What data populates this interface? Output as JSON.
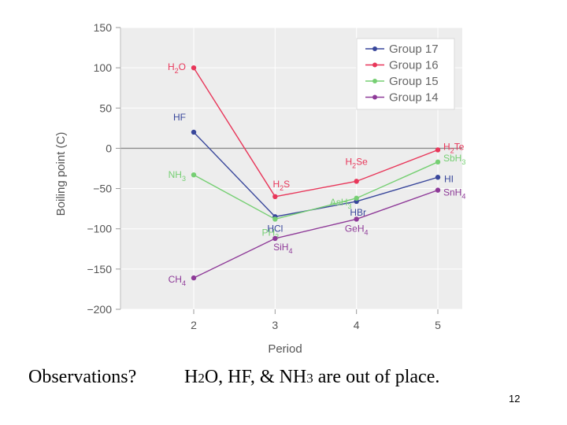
{
  "chart_data": {
    "type": "line",
    "xlabel": "Period",
    "ylabel": "Boiling point (C)",
    "x": [
      2,
      3,
      4,
      5
    ],
    "xlim": [
      1.1,
      5.3
    ],
    "ylim": [
      -200,
      150
    ],
    "yticks": [
      150,
      100,
      50,
      0,
      -50,
      -100,
      -150,
      -200
    ],
    "ytick_labels": [
      "150",
      "100",
      "50",
      "0",
      "−50",
      "−100",
      "−150",
      "−200"
    ],
    "legend_position": "top-right",
    "series": [
      {
        "name": "Group 17",
        "color": "#39479b",
        "values": [
          20,
          -85,
          -66,
          -36
        ],
        "labels": [
          {
            "main": "HF",
            "sub": ""
          },
          {
            "main": "HCl",
            "sub": ""
          },
          {
            "main": "HBr",
            "sub": ""
          },
          {
            "main": "HI",
            "sub": ""
          }
        ]
      },
      {
        "name": "Group 16",
        "color": "#e8375a",
        "values": [
          100,
          -60,
          -41,
          -2
        ],
        "labels": [
          {
            "main": "H",
            "sub": "2",
            "tail": "O"
          },
          {
            "main": "H",
            "sub": "2",
            "tail": "S"
          },
          {
            "main": "H",
            "sub": "2",
            "tail": "Se"
          },
          {
            "main": "H",
            "sub": "2",
            "tail": "Te"
          }
        ]
      },
      {
        "name": "Group 15",
        "color": "#76cf73",
        "values": [
          -33,
          -88,
          -62,
          -17
        ],
        "labels": [
          {
            "main": "NH",
            "sub": "3"
          },
          {
            "main": "PH",
            "sub": "3"
          },
          {
            "main": "AsH",
            "sub": "3"
          },
          {
            "main": "SbH",
            "sub": "3"
          }
        ]
      },
      {
        "name": "Group 14",
        "color": "#8e3a98",
        "values": [
          -161,
          -112,
          -88,
          -52
        ],
        "labels": [
          {
            "main": "CH",
            "sub": "4"
          },
          {
            "main": "SiH",
            "sub": "4"
          },
          {
            "main": "GeH",
            "sub": "4"
          },
          {
            "main": "SnH",
            "sub": "4"
          }
        ]
      }
    ]
  },
  "captions": {
    "observations": "Observations?",
    "statement": {
      "a": "H",
      "a_sub": "2",
      "b": "O, HF, & NH",
      "b_sub": "3",
      "c": " are out of place."
    }
  },
  "page_number": "12"
}
